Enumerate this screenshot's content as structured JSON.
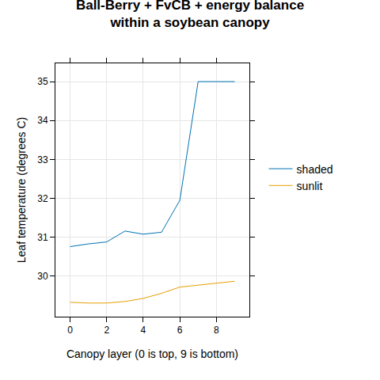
{
  "chart_data": {
    "type": "line",
    "title": "Ball-Berry + FvCB + energy balance\nwithin a soybean canopy",
    "x_label": "Canopy layer (0 is top, 9 is bottom)",
    "y_label": "Leaf temperature (degrees C)",
    "x": [
      0,
      1,
      2,
      3,
      4,
      5,
      6,
      7,
      8,
      9
    ],
    "series": [
      {
        "name": "shaded",
        "color": "#0072B2",
        "values": [
          30.76,
          30.83,
          30.88,
          31.16,
          31.08,
          31.13,
          31.95,
          35,
          35,
          35
        ]
      },
      {
        "name": "sunlit",
        "color": "#E69F00",
        "values": [
          29.33,
          29.31,
          29.31,
          29.35,
          29.43,
          29.56,
          29.72,
          29.77,
          29.81,
          29.87
        ]
      }
    ],
    "xlim": [
      -0.8,
      9.8
    ],
    "xticks": [
      0,
      2,
      4,
      6,
      8
    ],
    "ylim": [
      28.96,
      35.47
    ],
    "yticks": [
      30,
      31,
      32,
      33,
      34,
      35
    ],
    "grid": true,
    "legend": "right"
  }
}
